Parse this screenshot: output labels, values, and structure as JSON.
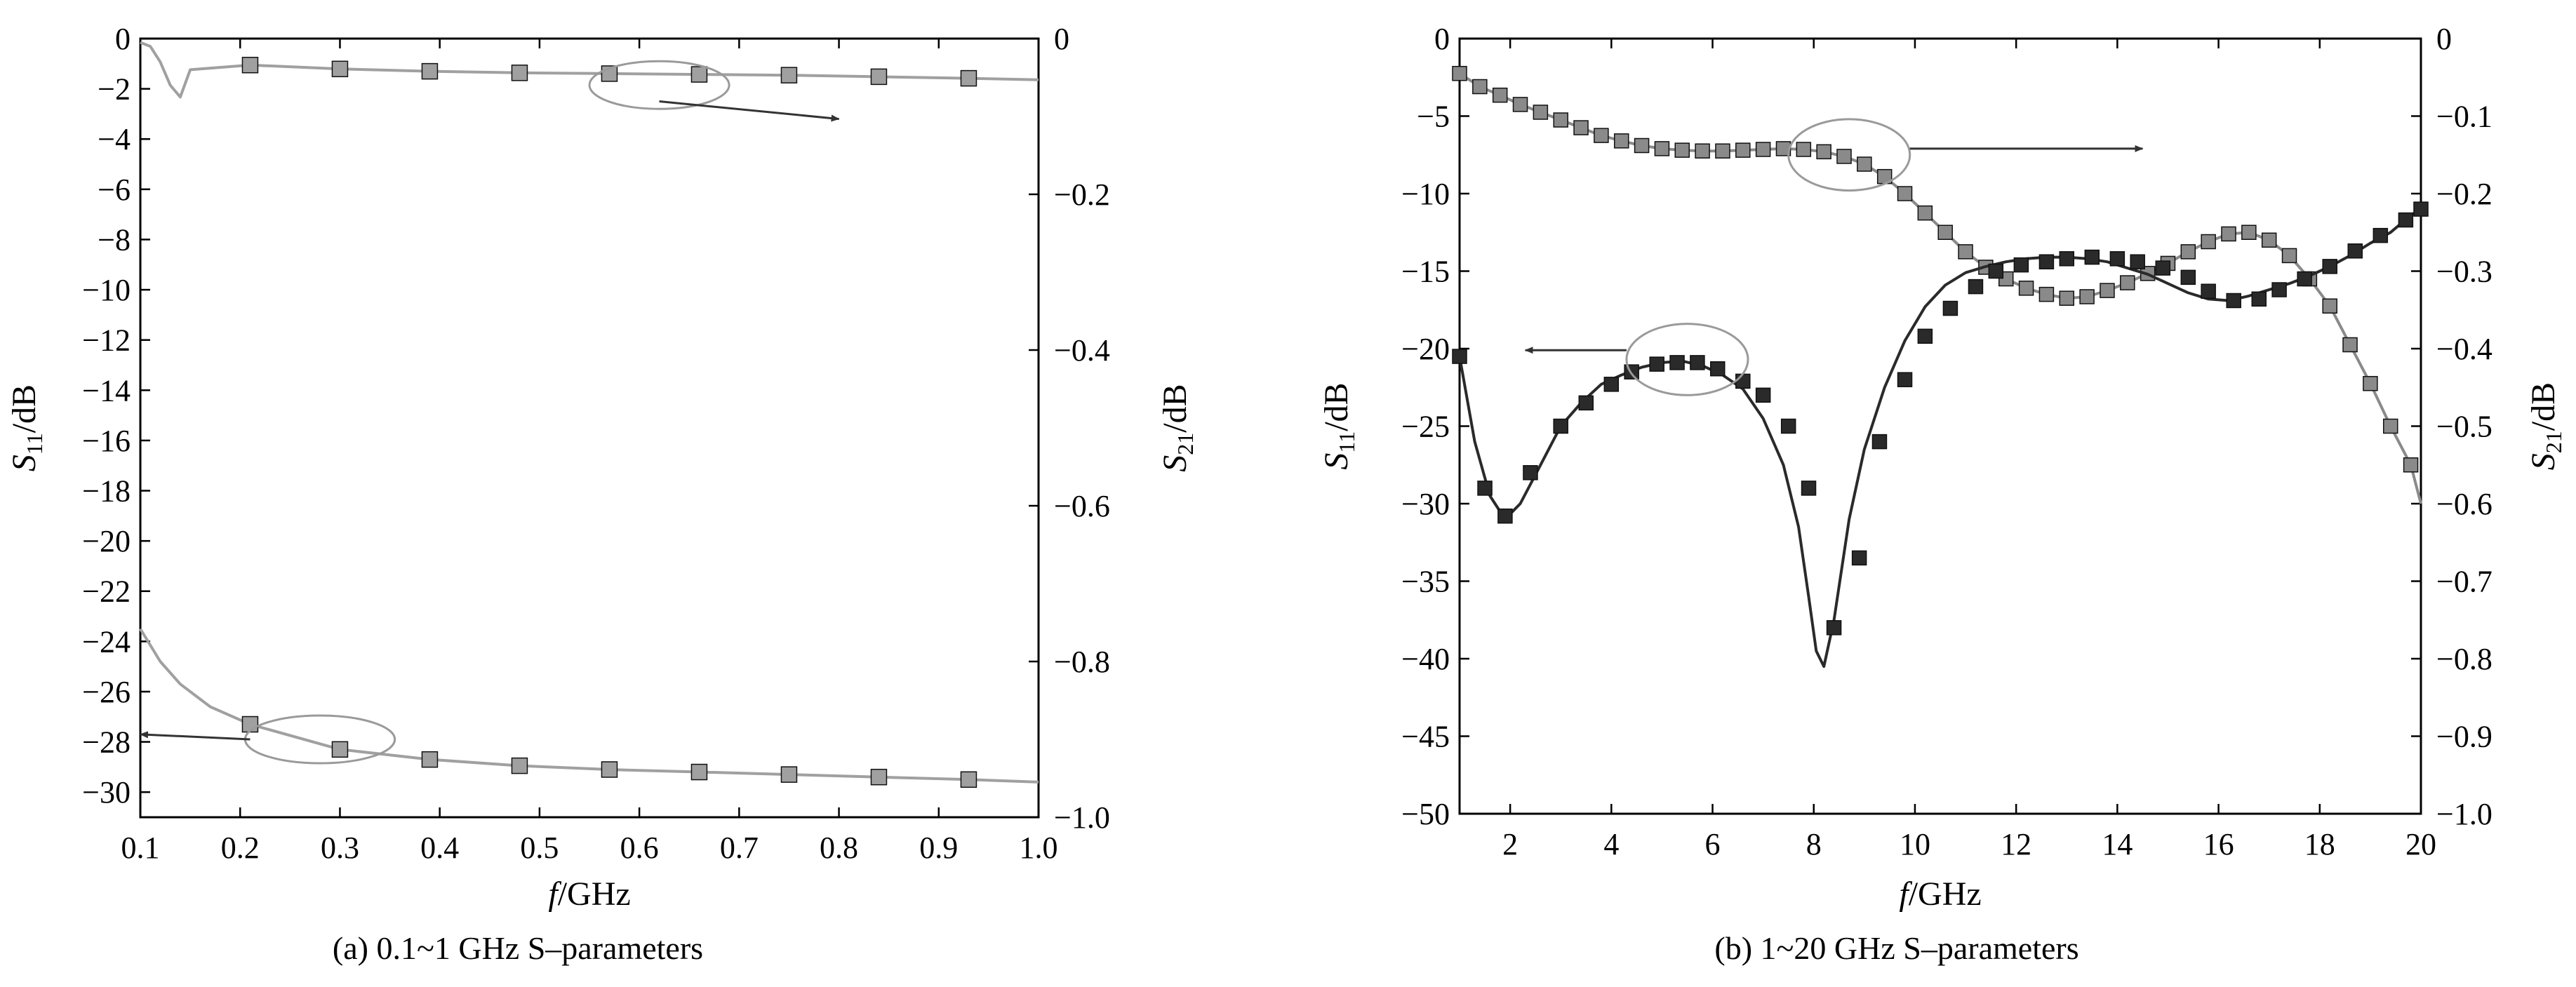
{
  "chart_data": [
    {
      "type": "line",
      "caption": "(a) 0.1~1 GHz S–parameters",
      "xlabel": {
        "main": "f",
        "unit": "/GHz"
      },
      "ylabel_left": {
        "main": "S",
        "sub": "11",
        "unit": "/dB"
      },
      "ylabel_right": {
        "main": "S",
        "sub": "21",
        "unit": "/dB"
      },
      "xlim": [
        0.1,
        1.0
      ],
      "ylim_left": [
        -31,
        0
      ],
      "ylim_right": [
        -1.0,
        0
      ],
      "x_ticks": [
        "0.1",
        "0.2",
        "0.3",
        "0.4",
        "0.5",
        "0.6",
        "0.7",
        "0.8",
        "0.9",
        "1.0"
      ],
      "y_ticks_left": [
        "0",
        "−2",
        "−4",
        "−6",
        "−8",
        "−10",
        "−12",
        "−14",
        "−16",
        "−18",
        "−20",
        "−22",
        "−24",
        "−26",
        "−28",
        "−30"
      ],
      "y_ticks_right": [
        "0",
        "−0.2",
        "−0.4",
        "−0.6",
        "−0.8",
        "−1.0"
      ],
      "grid": false,
      "series": [
        {
          "axis": "right",
          "color": "#a0a0a0",
          "curve": {
            "x": [
              0.1,
              0.11,
              0.12,
              0.13,
              0.14,
              0.15,
              0.21,
              0.3,
              0.39,
              0.48,
              0.57,
              0.66,
              0.75,
              0.84,
              0.93,
              1.0
            ],
            "y": [
              -0.005,
              -0.01,
              -0.03,
              -0.06,
              -0.075,
              -0.04,
              -0.034,
              -0.039,
              -0.042,
              -0.044,
              -0.045,
              -0.046,
              -0.047,
              -0.049,
              -0.051,
              -0.053
            ]
          },
          "markers": {
            "x": [
              0.21,
              0.3,
              0.39,
              0.48,
              0.57,
              0.66,
              0.75,
              0.84,
              0.93
            ],
            "y": [
              -0.034,
              -0.039,
              -0.042,
              -0.044,
              -0.045,
              -0.046,
              -0.047,
              -0.049,
              -0.051
            ]
          }
        },
        {
          "axis": "left",
          "color": "#a0a0a0",
          "curve": {
            "x": [
              0.1,
              0.12,
              0.14,
              0.17,
              0.21,
              0.3,
              0.39,
              0.48,
              0.57,
              0.66,
              0.75,
              0.84,
              0.93,
              1.0
            ],
            "y": [
              -23.5,
              -24.8,
              -25.7,
              -26.6,
              -27.3,
              -28.3,
              -28.7,
              -28.95,
              -29.1,
              -29.2,
              -29.3,
              -29.4,
              -29.5,
              -29.6
            ]
          },
          "markers": {
            "x": [
              0.21,
              0.3,
              0.39,
              0.48,
              0.57,
              0.66,
              0.75,
              0.84,
              0.93
            ],
            "y": [
              -27.3,
              -28.3,
              -28.7,
              -28.95,
              -29.1,
              -29.2,
              -29.3,
              -29.4,
              -29.5
            ]
          }
        }
      ],
      "annotations": [
        {
          "type": "ellipse",
          "cx": 0.62,
          "cy": -1.85,
          "rx": 0.07,
          "ry": 0.95,
          "axis": "left"
        },
        {
          "type": "arrow",
          "from": [
            0.62,
            -2.5
          ],
          "to": [
            0.8,
            -3.2
          ],
          "axis": "left"
        },
        {
          "type": "ellipse",
          "cx": 0.28,
          "cy": -27.9,
          "rx": 0.075,
          "ry": 0.95,
          "axis": "left"
        },
        {
          "type": "arrow",
          "from": [
            0.21,
            -27.9
          ],
          "to": [
            0.1,
            -27.7
          ],
          "axis": "left"
        }
      ]
    },
    {
      "type": "line",
      "caption": "(b) 1~20 GHz S–parameters",
      "xlabel": {
        "main": "f",
        "unit": "/GHz"
      },
      "ylabel_left": {
        "main": "S",
        "sub": "11",
        "unit": "/dB"
      },
      "ylabel_right": {
        "main": "S",
        "sub": "21",
        "unit": "/dB"
      },
      "xlim": [
        1,
        20
      ],
      "ylim_left": [
        -50,
        0
      ],
      "ylim_right": [
        -1.0,
        0
      ],
      "x_ticks": [
        "2",
        "4",
        "6",
        "8",
        "10",
        "12",
        "14",
        "16",
        "18",
        "20"
      ],
      "y_ticks_left": [
        "0",
        "−5",
        "−10",
        "−15",
        "−20",
        "−25",
        "−30",
        "−35",
        "−40",
        "−45",
        "−50"
      ],
      "y_ticks_right": [
        "0",
        "−0.1",
        "−0.2",
        "−0.3",
        "−0.4",
        "−0.5",
        "−0.6",
        "−0.7",
        "−0.8",
        "−0.9",
        "−1.0"
      ],
      "grid": false,
      "series": [
        {
          "axis": "right",
          "color": "#8a8a8a",
          "curve": {
            "x": [
              1,
              1.4,
              1.8,
              2.2,
              2.6,
              3.0,
              3.4,
              3.8,
              4.2,
              4.6,
              5.0,
              5.4,
              5.8,
              6.2,
              6.6,
              7.0,
              7.4,
              7.8,
              8.2,
              8.6,
              9.0,
              9.4,
              9.8,
              10.2,
              10.6,
              11.0,
              11.4,
              11.8,
              12.2,
              12.6,
              13.0,
              13.4,
              13.8,
              14.2,
              14.6,
              15.0,
              15.4,
              15.8,
              16.2,
              16.6,
              17.0,
              17.4,
              17.8,
              18.2,
              18.6,
              19.0,
              19.4,
              19.8,
              20.0
            ],
            "y": [
              -0.045,
              -0.062,
              -0.073,
              -0.085,
              -0.095,
              -0.105,
              -0.115,
              -0.125,
              -0.132,
              -0.138,
              -0.142,
              -0.144,
              -0.145,
              -0.145,
              -0.144,
              -0.143,
              -0.142,
              -0.143,
              -0.146,
              -0.152,
              -0.162,
              -0.178,
              -0.2,
              -0.225,
              -0.25,
              -0.275,
              -0.295,
              -0.31,
              -0.322,
              -0.33,
              -0.335,
              -0.333,
              -0.325,
              -0.315,
              -0.303,
              -0.29,
              -0.275,
              -0.262,
              -0.252,
              -0.25,
              -0.26,
              -0.28,
              -0.31,
              -0.345,
              -0.395,
              -0.445,
              -0.5,
              -0.55,
              -0.6
            ]
          },
          "markers": {
            "x": [
              1,
              1.4,
              1.8,
              2.2,
              2.6,
              3.0,
              3.4,
              3.8,
              4.2,
              4.6,
              5.0,
              5.4,
              5.8,
              6.2,
              6.6,
              7.0,
              7.4,
              7.8,
              8.2,
              8.6,
              9.0,
              9.4,
              9.8,
              10.2,
              10.6,
              11.0,
              11.4,
              11.8,
              12.2,
              12.6,
              13.0,
              13.4,
              13.8,
              14.2,
              14.6,
              15.0,
              15.4,
              15.8,
              16.2,
              16.6,
              17.0,
              17.4,
              17.8,
              18.2,
              18.6,
              19.0,
              19.4,
              19.8
            ],
            "y": [
              -0.045,
              -0.062,
              -0.073,
              -0.085,
              -0.095,
              -0.105,
              -0.115,
              -0.125,
              -0.132,
              -0.138,
              -0.142,
              -0.144,
              -0.145,
              -0.145,
              -0.144,
              -0.143,
              -0.142,
              -0.143,
              -0.146,
              -0.152,
              -0.162,
              -0.178,
              -0.2,
              -0.225,
              -0.25,
              -0.275,
              -0.295,
              -0.31,
              -0.322,
              -0.33,
              -0.335,
              -0.333,
              -0.325,
              -0.315,
              -0.303,
              -0.29,
              -0.275,
              -0.262,
              -0.252,
              -0.25,
              -0.26,
              -0.28,
              -0.31,
              -0.345,
              -0.395,
              -0.445,
              -0.5,
              -0.55
            ]
          }
        },
        {
          "axis": "left",
          "color": "#2a2a2a",
          "curve": {
            "x": [
              1,
              1.3,
              1.6,
              1.9,
              2.2,
              2.6,
              3.0,
              3.4,
              3.8,
              4.2,
              4.6,
              5.0,
              5.4,
              5.8,
              6.2,
              6.6,
              7.0,
              7.4,
              7.7,
              7.9,
              8.05,
              8.2,
              8.4,
              8.7,
              9.0,
              9.4,
              9.8,
              10.2,
              10.6,
              11.0,
              11.4,
              11.8,
              12.2,
              12.6,
              13.0,
              13.4,
              13.8,
              14.2,
              14.6,
              15.0,
              15.4,
              15.8,
              16.2,
              16.6,
              17.0,
              17.4,
              17.8,
              18.2,
              18.6,
              19.0,
              19.4,
              19.8,
              20.0
            ],
            "y": [
              -20.5,
              -26.0,
              -29.5,
              -31.0,
              -30.0,
              -27.5,
              -25.0,
              -23.5,
              -22.3,
              -21.7,
              -21.2,
              -20.9,
              -20.8,
              -21.1,
              -21.7,
              -22.6,
              -24.5,
              -27.5,
              -31.5,
              -36.0,
              -39.5,
              -40.5,
              -37.5,
              -31.0,
              -26.5,
              -22.5,
              -19.5,
              -17.3,
              -15.9,
              -15.1,
              -14.7,
              -14.4,
              -14.2,
              -14.1,
              -14.1,
              -14.2,
              -14.4,
              -14.8,
              -15.2,
              -15.8,
              -16.4,
              -16.8,
              -16.9,
              -16.6,
              -16.2,
              -15.8,
              -15.3,
              -14.7,
              -14.0,
              -13.2,
              -12.5,
              -11.4,
              -11.0
            ]
          },
          "markers": {
            "x": [
              1.0,
              1.5,
              1.9,
              2.4,
              3.0,
              3.5,
              4.0,
              4.4,
              4.9,
              5.3,
              5.7,
              6.1,
              6.6,
              7.0,
              7.5,
              7.9,
              8.4,
              8.9,
              9.3,
              9.8,
              10.2,
              10.7,
              11.2,
              11.6,
              12.1,
              12.6,
              13.0,
              13.5,
              14.0,
              14.4,
              14.9,
              15.4,
              15.8,
              16.3,
              16.8,
              17.2,
              17.7,
              18.2,
              18.7,
              19.2,
              19.7,
              20.0
            ],
            "y": [
              -20.5,
              -29.0,
              -30.8,
              -28.0,
              -25.0,
              -23.5,
              -22.3,
              -21.5,
              -21.0,
              -20.9,
              -20.9,
              -21.3,
              -22.1,
              -23.0,
              -25.0,
              -29.0,
              -38.0,
              -33.5,
              -26.0,
              -22.0,
              -19.2,
              -17.4,
              -16.0,
              -15.0,
              -14.6,
              -14.4,
              -14.2,
              -14.1,
              -14.2,
              -14.4,
              -14.8,
              -15.4,
              -16.3,
              -16.9,
              -16.8,
              -16.2,
              -15.5,
              -14.7,
              -13.7,
              -12.7,
              -11.7,
              -11.0
            ]
          }
        }
      ],
      "annotations": [
        {
          "type": "ellipse",
          "cx": 8.7,
          "cy": -7.5,
          "rx": 1.2,
          "ry": 2.3,
          "axis": "left"
        },
        {
          "type": "arrow",
          "from": [
            9.9,
            -7.1
          ],
          "to": [
            14.5,
            -7.1
          ],
          "axis": "left"
        },
        {
          "type": "ellipse",
          "cx": 5.5,
          "cy": -20.7,
          "rx": 1.2,
          "ry": 2.3,
          "axis": "left"
        },
        {
          "type": "arrow",
          "from": [
            4.3,
            -20.1
          ],
          "to": [
            2.3,
            -20.1
          ],
          "axis": "left"
        }
      ]
    }
  ]
}
